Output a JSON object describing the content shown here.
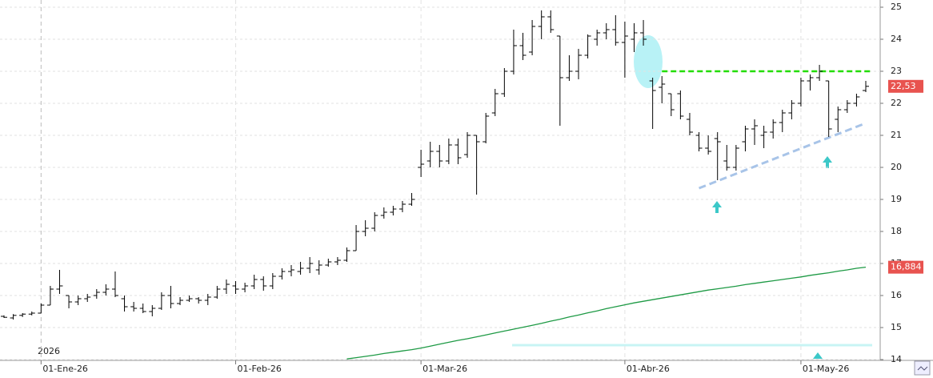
{
  "chart_data": {
    "type": "ohlc",
    "year_label": "2026",
    "color": "#000000",
    "categories": [
      null,
      null,
      null,
      null,
      "01-Ene-26",
      null,
      null,
      null,
      null,
      null,
      null,
      null,
      null,
      null,
      null,
      null,
      null,
      null,
      null,
      null,
      null,
      null,
      null,
      null,
      null,
      "01-Feb-26",
      null,
      null,
      null,
      null,
      null,
      null,
      null,
      null,
      null,
      null,
      null,
      null,
      null,
      null,
      null,
      null,
      null,
      null,
      null,
      "01-Mar-26",
      null,
      null,
      null,
      null,
      null,
      null,
      null,
      null,
      null,
      null,
      null,
      null,
      null,
      null,
      null,
      null,
      null,
      null,
      null,
      null,
      null,
      "01-Abr-26",
      null,
      null,
      null,
      null,
      null,
      null,
      null,
      null,
      null,
      null,
      null,
      null,
      null,
      null,
      null,
      null,
      null,
      null,
      "01-May-26",
      null,
      null,
      null,
      null,
      null,
      null,
      null
    ],
    "open": [
      15.35,
      15.3,
      15.38,
      15.42,
      15.45,
      15.7,
      16.2,
      16.0,
      15.8,
      15.9,
      16.0,
      16.1,
      16.2,
      15.9,
      15.65,
      15.6,
      15.5,
      15.6,
      16.0,
      15.75,
      15.85,
      15.9,
      15.85,
      15.95,
      16.2,
      16.3,
      16.2,
      16.3,
      16.5,
      16.3,
      16.6,
      16.75,
      16.75,
      16.85,
      16.8,
      16.95,
      17.05,
      17.1,
      17.4,
      18.0,
      18.1,
      18.5,
      18.6,
      18.7,
      18.85,
      20.0,
      20.2,
      20.5,
      20.2,
      20.7,
      20.4,
      21.0,
      20.8,
      21.7,
      22.3,
      23.0,
      23.8,
      23.6,
      24.4,
      24.7,
      24.1,
      22.8,
      23.0,
      23.5,
      24.0,
      24.2,
      24.3,
      23.9,
      24.0,
      24.2,
      22.7,
      22.5,
      22.3,
      22.3,
      21.5,
      21.0,
      20.6,
      20.9,
      20.2,
      20.0,
      20.8,
      21.2,
      21.0,
      21.1,
      21.4,
      21.7,
      22.0,
      22.7,
      22.8,
      22.7,
      21.5,
      21.8,
      22.0,
      22.4
    ],
    "high": [
      15.38,
      15.42,
      15.45,
      15.5,
      15.75,
      16.3,
      16.8,
      16.0,
      16.0,
      16.05,
      16.2,
      16.35,
      16.75,
      16.0,
      15.8,
      15.75,
      15.7,
      16.1,
      16.3,
      15.95,
      16.0,
      15.95,
      16.05,
      16.3,
      16.5,
      16.45,
      16.4,
      16.65,
      16.6,
      16.7,
      16.85,
      16.95,
      17.05,
      17.2,
      17.1,
      17.15,
      17.2,
      17.5,
      18.2,
      18.35,
      18.6,
      18.75,
      18.8,
      18.95,
      19.2,
      20.55,
      20.8,
      20.7,
      20.9,
      20.9,
      21.1,
      21.0,
      21.7,
      22.45,
      23.1,
      24.3,
      24.2,
      24.6,
      24.9,
      24.9,
      24.1,
      23.5,
      23.7,
      24.15,
      24.3,
      24.5,
      24.75,
      24.55,
      24.5,
      24.6,
      22.8,
      22.85,
      22.3,
      22.4,
      21.7,
      21.1,
      21.0,
      21.1,
      20.7,
      20.7,
      21.3,
      21.5,
      21.3,
      21.5,
      21.8,
      22.1,
      22.8,
      22.9,
      23.2,
      22.7,
      21.9,
      22.1,
      22.3,
      22.7
    ],
    "low": [
      15.3,
      15.25,
      15.33,
      15.38,
      15.45,
      15.7,
      16.05,
      15.6,
      15.7,
      15.8,
      15.9,
      16.0,
      15.95,
      15.5,
      15.5,
      15.45,
      15.35,
      15.55,
      15.6,
      15.7,
      15.8,
      15.75,
      15.7,
      15.9,
      16.05,
      16.05,
      16.1,
      16.2,
      16.15,
      16.2,
      16.5,
      16.6,
      16.65,
      16.7,
      16.65,
      16.9,
      16.95,
      17.05,
      17.4,
      17.85,
      18.0,
      18.4,
      18.5,
      18.6,
      18.8,
      19.7,
      20.0,
      20.0,
      20.1,
      20.1,
      20.3,
      19.15,
      20.75,
      21.6,
      22.2,
      22.9,
      23.35,
      23.5,
      24.0,
      24.2,
      21.3,
      22.7,
      22.75,
      23.4,
      23.8,
      24.0,
      23.8,
      22.8,
      23.6,
      23.8,
      21.2,
      22.0,
      21.6,
      21.5,
      21.0,
      20.5,
      20.4,
      19.6,
      19.9,
      19.9,
      20.5,
      20.7,
      20.6,
      20.9,
      21.1,
      21.5,
      21.9,
      22.4,
      22.7,
      20.95,
      21.1,
      21.7,
      21.9,
      22.35
    ],
    "close": [
      15.32,
      15.38,
      15.42,
      15.45,
      15.7,
      16.2,
      16.3,
      15.8,
      15.9,
      15.95,
      16.1,
      16.2,
      16.0,
      15.65,
      15.6,
      15.5,
      15.6,
      16.0,
      15.75,
      15.85,
      15.9,
      15.85,
      15.95,
      16.2,
      16.35,
      16.2,
      16.3,
      16.5,
      16.3,
      16.6,
      16.75,
      16.8,
      16.85,
      17.0,
      16.95,
      17.05,
      17.1,
      17.4,
      18.0,
      18.1,
      18.5,
      18.6,
      18.7,
      18.85,
      19.0,
      20.1,
      20.5,
      20.2,
      20.7,
      20.3,
      21.0,
      20.8,
      21.6,
      22.3,
      23.0,
      23.8,
      23.5,
      24.4,
      24.7,
      24.3,
      22.8,
      23.0,
      23.5,
      24.1,
      24.2,
      24.3,
      23.9,
      24.1,
      24.2,
      24.0,
      22.4,
      22.6,
      21.8,
      21.6,
      21.1,
      20.6,
      20.5,
      20.8,
      20.0,
      20.6,
      21.2,
      21.3,
      21.1,
      21.4,
      21.7,
      22.0,
      22.7,
      22.8,
      23.0,
      21.2,
      21.8,
      22.0,
      22.2,
      22.53
    ],
    "last_label": {
      "value": 22.53,
      "label": "22,53"
    },
    "moving_average": {
      "color": "#1e9a45",
      "values": [
        null,
        null,
        null,
        null,
        null,
        null,
        null,
        null,
        null,
        null,
        null,
        null,
        null,
        null,
        null,
        null,
        null,
        null,
        null,
        null,
        null,
        null,
        null,
        null,
        null,
        null,
        null,
        null,
        null,
        null,
        null,
        null,
        null,
        null,
        null,
        null,
        null,
        14.02,
        14.06,
        14.1,
        14.14,
        14.19,
        14.23,
        14.27,
        14.31,
        14.36,
        14.42,
        14.48,
        14.54,
        14.6,
        14.65,
        14.71,
        14.77,
        14.83,
        14.89,
        14.95,
        15.01,
        15.07,
        15.13,
        15.2,
        15.26,
        15.33,
        15.39,
        15.46,
        15.52,
        15.59,
        15.65,
        15.71,
        15.77,
        15.82,
        15.87,
        15.92,
        15.97,
        16.02,
        16.07,
        16.12,
        16.17,
        16.21,
        16.25,
        16.29,
        16.34,
        16.38,
        16.42,
        16.46,
        16.5,
        16.54,
        16.58,
        16.63,
        16.67,
        16.71,
        16.76,
        16.8,
        16.85,
        16.884
      ],
      "last_label": {
        "value": 16.884,
        "label": "16,884"
      }
    },
    "level_line": {
      "value": 23,
      "start": 71,
      "color": "#22dd00"
    },
    "trendline": {
      "start": 75,
      "end": 93,
      "values": [
        19.35,
        21.38
      ],
      "color": "#a8c4e8"
    },
    "ylim": [
      13.975,
      25.225
    ],
    "yticks": [
      14,
      15,
      16,
      17,
      18,
      19,
      20,
      21,
      22,
      23,
      24,
      25
    ],
    "grid": true
  }
}
